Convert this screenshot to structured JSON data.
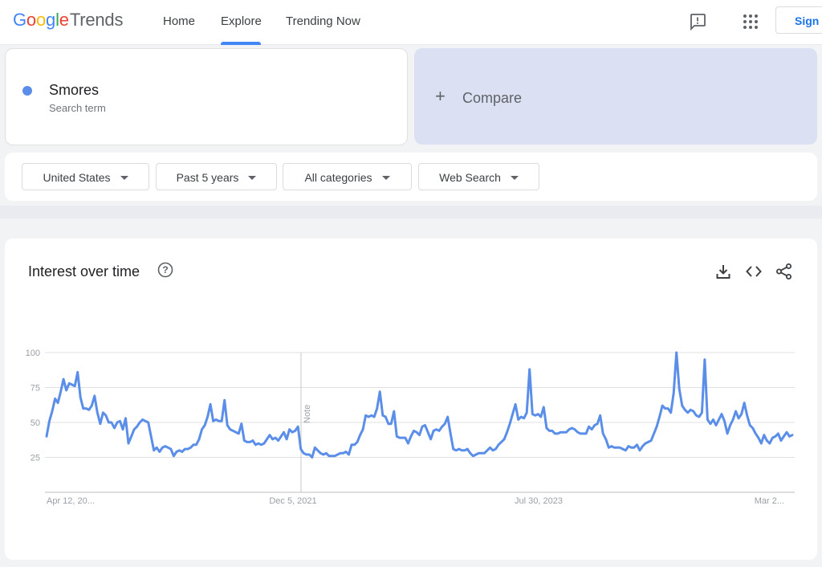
{
  "header": {
    "logo": {
      "google": [
        "G",
        "o",
        "o",
        "g",
        "l",
        "e"
      ],
      "trends": "Trends"
    },
    "nav": [
      {
        "label": "Home"
      },
      {
        "label": "Explore"
      },
      {
        "label": "Trending Now"
      }
    ],
    "signin_label": "Sign i"
  },
  "term": {
    "name": "Smores",
    "sublabel": "Search term",
    "color": "#5a8ee8"
  },
  "compare": {
    "plus": "+",
    "label": "Compare"
  },
  "filters": [
    {
      "label": "United States"
    },
    {
      "label": "Past 5 years"
    },
    {
      "label": "All categories"
    },
    {
      "label": "Web Search"
    }
  ],
  "chart": {
    "title": "Interest over time",
    "note_label": "Note"
  },
  "chart_data": {
    "type": "line",
    "title": "Interest over time",
    "xlabel": "",
    "ylabel": "",
    "ylim": [
      0,
      100
    ],
    "yticks": [
      100,
      75,
      50,
      25
    ],
    "xticks": [
      "Apr 12, 20...",
      "Dec 5, 2021",
      "Jul 30, 2023",
      "Mar 2..."
    ],
    "grid": true,
    "series": [
      {
        "color": "#5a8ee8",
        "values": [
          40,
          51,
          58,
          67,
          64,
          72,
          81,
          73,
          78,
          77,
          76,
          86,
          68,
          60,
          60,
          59,
          62,
          69,
          57,
          49,
          57,
          55,
          50,
          50,
          46,
          50,
          51,
          45,
          53,
          35,
          40,
          45,
          47,
          50,
          52,
          51,
          50,
          40,
          30,
          32,
          29,
          32,
          33,
          32,
          31,
          26,
          29,
          30,
          29,
          31,
          31,
          32,
          34,
          34,
          38,
          45,
          48,
          54,
          63,
          51,
          52,
          51,
          51,
          66,
          48,
          45,
          44,
          43,
          42,
          49,
          37,
          36,
          36,
          37,
          34,
          35,
          34,
          35,
          38,
          41,
          38,
          39,
          37,
          40,
          43,
          38,
          45,
          43,
          44,
          47,
          31,
          28,
          27,
          27,
          25,
          32,
          30,
          28,
          27,
          28,
          26,
          26,
          26,
          27,
          28,
          28,
          29,
          27,
          34,
          34,
          36,
          41,
          45,
          55,
          54,
          55,
          54,
          60,
          72,
          55,
          54,
          49,
          49,
          58,
          40,
          39,
          39,
          39,
          35,
          40,
          44,
          43,
          41,
          47,
          48,
          43,
          38,
          44,
          45,
          44,
          47,
          49,
          54,
          42,
          31,
          30,
          31,
          30,
          30,
          31,
          28,
          26,
          27,
          28,
          28,
          28,
          30,
          32,
          30,
          31,
          34,
          36,
          38,
          43,
          49,
          56,
          63,
          52,
          54,
          53,
          57,
          88,
          56,
          55,
          56,
          54,
          61,
          46,
          44,
          44,
          42,
          42,
          43,
          43,
          43,
          45,
          46,
          45,
          43,
          42,
          42,
          42,
          47,
          45,
          48,
          49,
          55,
          42,
          38,
          32,
          33,
          32,
          32,
          32,
          31,
          30,
          33,
          32,
          32,
          34,
          30,
          33,
          35,
          36,
          37,
          42,
          47,
          54,
          62,
          60,
          60,
          57,
          71,
          100,
          74,
          62,
          59,
          57,
          59,
          58,
          55,
          54,
          57,
          95,
          52,
          49,
          52,
          48,
          52,
          56,
          51,
          42,
          48,
          52,
          58,
          53,
          56,
          64,
          55,
          48,
          46,
          42,
          39,
          35,
          41,
          37,
          35,
          39,
          40,
          42,
          37,
          40,
          43,
          40,
          41
        ]
      }
    ]
  }
}
